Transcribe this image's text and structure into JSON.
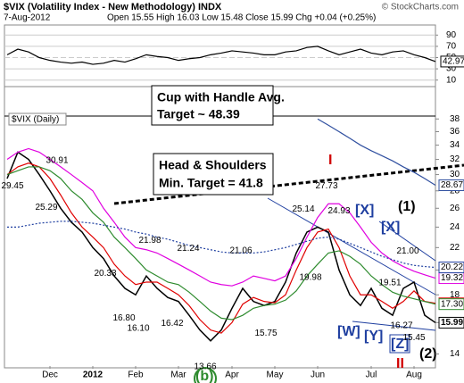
{
  "chart_data": [
    {
      "type": "line",
      "values": [
        55,
        65,
        60,
        50,
        45,
        42,
        40,
        42,
        38,
        40,
        45,
        42,
        48,
        55,
        52,
        50,
        45,
        48,
        50,
        55,
        58,
        62,
        60,
        58,
        55,
        55,
        60,
        62,
        68,
        70,
        62,
        55,
        60,
        65,
        58,
        55,
        60,
        62,
        55,
        50,
        42.97
      ],
      "color": "#000000",
      "ylim": [
        0,
        100
      ],
      "yticks": [
        10,
        30,
        50,
        70,
        90
      ]
    },
    {
      "type": "line",
      "title": "$VIX (Volatility Index - New Methodology) INDX",
      "source": "© StockCharts.com",
      "date": "7-Aug-2012",
      "subtitle": "Open 15.55 High 16.03 Low 15.48 Close 15.99 Chg +0.04 (+0.25%)",
      "categories": [
        null,
        null,
        null,
        null,
        "Dec",
        null,
        null,
        null,
        "2012",
        null,
        null,
        null,
        "Feb",
        null,
        null,
        null,
        "Mar",
        null,
        null,
        null,
        null,
        "Apr",
        null,
        null,
        null,
        "May",
        null,
        null,
        null,
        "Jun",
        null,
        null,
        null,
        null,
        "Jul",
        null,
        null,
        null,
        "Aug",
        null,
        null
      ],
      "log_scale": true,
      "ylim": [
        13.3,
        43.6
      ],
      "yticks": [
        14,
        16,
        18,
        20,
        22,
        24,
        26,
        28,
        30,
        32,
        34,
        36,
        38
      ],
      "series": [
        {
          "name": "$VIX (Daily)",
          "color": "#000000",
          "values": [
            29.5,
            33,
            32,
            30,
            28,
            26,
            24.5,
            23.5,
            22,
            21,
            19.5,
            18.5,
            18,
            19.5,
            18.5,
            17.8,
            17.5,
            16.5,
            15.5,
            14.8,
            15.5,
            17,
            18.5,
            17.5,
            17.2,
            17.5,
            19,
            21.5,
            23.5,
            24,
            23.5,
            20,
            18,
            17.2,
            18.5,
            17,
            16.5,
            18.5,
            19,
            16.5,
            15.99
          ]
        },
        {
          "color": "#e00000",
          "values": [
            30,
            31,
            31.5,
            31,
            29.5,
            27.5,
            25.5,
            24,
            23,
            22,
            20.5,
            19.5,
            18.8,
            19,
            19,
            18.5,
            18,
            17.2,
            16.2,
            15.5,
            15.3,
            16,
            17.3,
            17.8,
            17.5,
            17.4,
            18,
            20,
            22,
            23.5,
            23.8,
            22,
            19.5,
            18,
            18,
            17.5,
            17,
            17.5,
            18.3,
            17.5,
            17.36
          ]
        },
        {
          "color": "#2e8b2e",
          "values": [
            30,
            30.5,
            31,
            31,
            30.5,
            29.5,
            28,
            27,
            25.5,
            24.5,
            23,
            22,
            21,
            20,
            19.5,
            19,
            18.8,
            18.2,
            17.5,
            16.8,
            16.3,
            16.2,
            16.5,
            17,
            17.2,
            17.3,
            17.6,
            18.3,
            19.5,
            20.5,
            21.5,
            21.7,
            21.2,
            20.5,
            19.5,
            18.8,
            18.2,
            17.9,
            17.7,
            17.5,
            17.3
          ],
          "value_labels": [
            null,
            null,
            null,
            null,
            null,
            null,
            null,
            null,
            null,
            null,
            null,
            null,
            null,
            null,
            null,
            null,
            null,
            null,
            null,
            null,
            null,
            null,
            null,
            null,
            null,
            null,
            null,
            null,
            null,
            null,
            null,
            null,
            null,
            null,
            null,
            null,
            null,
            null,
            null,
            null,
            "17.30"
          ]
        },
        {
          "color": "#e000e0",
          "values": [
            32,
            33,
            33.5,
            33,
            32,
            31,
            30,
            29,
            28,
            26,
            24.5,
            23,
            22,
            21.8,
            21.5,
            21,
            20.5,
            20,
            19.5,
            19,
            18.8,
            18.7,
            19,
            19.5,
            19.3,
            19.1,
            19.5,
            21,
            23,
            25,
            26.5,
            26.5,
            25.5,
            24,
            22.5,
            21.5,
            20.8,
            20.3,
            19.9,
            19.6,
            19.32
          ]
        },
        {
          "color": "#1f3fa0",
          "dash": true,
          "values": [
            24,
            24,
            24.2,
            24.4,
            24.5,
            24.6,
            24.6,
            24.5,
            24.4,
            24.2,
            24,
            23.8,
            23.5,
            23.3,
            23,
            22.8,
            22.5,
            22.2,
            22,
            21.8,
            21.6,
            21.5,
            21.5,
            21.5,
            21.6,
            21.8,
            22,
            22.3,
            22.6,
            22.9,
            23,
            22.8,
            22.4,
            22,
            21.6,
            21.2,
            20.9,
            20.6,
            20.4,
            20.3,
            20.22
          ]
        },
        {
          "color": "#3050a0",
          "values": [
            null,
            null,
            null,
            null,
            null,
            null,
            null,
            null,
            null,
            null,
            null,
            null,
            null,
            null,
            null,
            null,
            null,
            null,
            null,
            null,
            null,
            null,
            null,
            null,
            null,
            null,
            null,
            null,
            null,
            38,
            37,
            36,
            35,
            34,
            33.2,
            32.5,
            31.8,
            31,
            30.3,
            29.5,
            28.67
          ]
        }
      ],
      "price_labels": [
        30.91,
        29.45,
        25.29,
        20.33,
        {
          "value": 16.8,
          "label": "16.80"
        },
        {
          "value": 16.1,
          "label": "16.10"
        },
        21.98,
        16.42,
        21.24,
        13.66,
        21.06,
        15.75,
        25.14,
        19.98,
        27.73,
        24.93,
        16.27,
        {
          "value": 21,
          "label": "21.00"
        },
        19.51,
        15.45
      ],
      "annotations": [
        "Cup with Handle Avg.",
        "Target ~ 48.39",
        "Head & Shoulders",
        "Min. Target = 41.8"
      ],
      "wave_labels": [
        "I",
        "II",
        "[X]",
        "[X]",
        "(1)",
        "[W]",
        "[Y]",
        "[Z]",
        "(2)",
        "(b)"
      ]
    }
  ]
}
